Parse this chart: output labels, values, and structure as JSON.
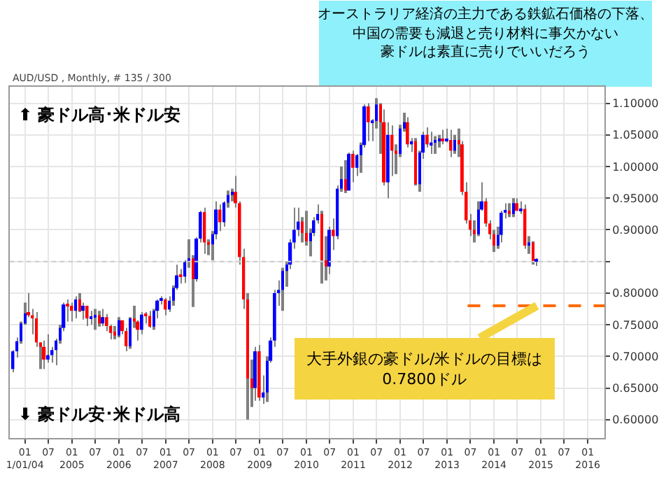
{
  "chart_data": {
    "type": "candlestick",
    "x": [
      "2003-10",
      "2003-11",
      "2003-12",
      "2004-01",
      "2004-02",
      "2004-03",
      "2004-04",
      "2004-05",
      "2004-06",
      "2004-07",
      "2004-08",
      "2004-09",
      "2004-10",
      "2004-11",
      "2004-12",
      "2005-01",
      "2005-02",
      "2005-03",
      "2005-04",
      "2005-05",
      "2005-06",
      "2005-07",
      "2005-08",
      "2005-09",
      "2005-10",
      "2005-11",
      "2005-12",
      "2006-01",
      "2006-02",
      "2006-03",
      "2006-04",
      "2006-05",
      "2006-06",
      "2006-07",
      "2006-08",
      "2006-09",
      "2006-10",
      "2006-11",
      "2006-12",
      "2007-01",
      "2007-02",
      "2007-03",
      "2007-04",
      "2007-05",
      "2007-06",
      "2007-07",
      "2007-08",
      "2007-09",
      "2007-10",
      "2007-11",
      "2007-12",
      "2008-01",
      "2008-02",
      "2008-03",
      "2008-04",
      "2008-05",
      "2008-06",
      "2008-07",
      "2008-08",
      "2008-09",
      "2008-10",
      "2008-11",
      "2008-12",
      "2009-01",
      "2009-02",
      "2009-03",
      "2009-04",
      "2009-05",
      "2009-06",
      "2009-07",
      "2009-08",
      "2009-09",
      "2009-10",
      "2009-11",
      "2009-12",
      "2010-01",
      "2010-02",
      "2010-03",
      "2010-04",
      "2010-05",
      "2010-06",
      "2010-07",
      "2010-08",
      "2010-09",
      "2010-10",
      "2010-11",
      "2010-12",
      "2011-01",
      "2011-02",
      "2011-03",
      "2011-04",
      "2011-05",
      "2011-06",
      "2011-07",
      "2011-08",
      "2011-09",
      "2011-10",
      "2011-11",
      "2011-12",
      "2012-01",
      "2012-02",
      "2012-03",
      "2012-04",
      "2012-05",
      "2012-06",
      "2012-07",
      "2012-08",
      "2012-09",
      "2012-10",
      "2012-11",
      "2012-12",
      "2013-01",
      "2013-02",
      "2013-03",
      "2013-04",
      "2013-05",
      "2013-06",
      "2013-07",
      "2013-08",
      "2013-09",
      "2013-10",
      "2013-11",
      "2013-12",
      "2014-01",
      "2014-02",
      "2014-03",
      "2014-04",
      "2014-05",
      "2014-06",
      "2014-07",
      "2014-08",
      "2014-09",
      "2014-10",
      "2014-11",
      "2014-12"
    ],
    "ohlc": [
      [
        0.68,
        0.71,
        0.675,
        0.708
      ],
      [
        0.708,
        0.73,
        0.698,
        0.724
      ],
      [
        0.724,
        0.755,
        0.72,
        0.752
      ],
      [
        0.752,
        0.785,
        0.75,
        0.768
      ],
      [
        0.768,
        0.8,
        0.762,
        0.765
      ],
      [
        0.765,
        0.775,
        0.735,
        0.76
      ],
      [
        0.76,
        0.77,
        0.715,
        0.722
      ],
      [
        0.722,
        0.722,
        0.68,
        0.715
      ],
      [
        0.715,
        0.725,
        0.68,
        0.695
      ],
      [
        0.695,
        0.735,
        0.69,
        0.702
      ],
      [
        0.702,
        0.715,
        0.69,
        0.71
      ],
      [
        0.71,
        0.728,
        0.686,
        0.725
      ],
      [
        0.725,
        0.75,
        0.72,
        0.745
      ],
      [
        0.745,
        0.785,
        0.74,
        0.782
      ],
      [
        0.782,
        0.79,
        0.755,
        0.78
      ],
      [
        0.78,
        0.785,
        0.755,
        0.772
      ],
      [
        0.772,
        0.795,
        0.76,
        0.79
      ],
      [
        0.79,
        0.8,
        0.77,
        0.772
      ],
      [
        0.772,
        0.785,
        0.758,
        0.78
      ],
      [
        0.78,
        0.78,
        0.748,
        0.76
      ],
      [
        0.76,
        0.772,
        0.75,
        0.762
      ],
      [
        0.762,
        0.775,
        0.742,
        0.765
      ],
      [
        0.765,
        0.772,
        0.747,
        0.752
      ],
      [
        0.752,
        0.775,
        0.748,
        0.762
      ],
      [
        0.762,
        0.767,
        0.74,
        0.748
      ],
      [
        0.748,
        0.75,
        0.727,
        0.737
      ],
      [
        0.737,
        0.748,
        0.727,
        0.733
      ],
      [
        0.733,
        0.762,
        0.73,
        0.757
      ],
      [
        0.757,
        0.757,
        0.735,
        0.74
      ],
      [
        0.74,
        0.745,
        0.708,
        0.716
      ],
      [
        0.716,
        0.762,
        0.712,
        0.76
      ],
      [
        0.76,
        0.78,
        0.745,
        0.755
      ],
      [
        0.755,
        0.757,
        0.725,
        0.742
      ],
      [
        0.742,
        0.77,
        0.735,
        0.766
      ],
      [
        0.766,
        0.77,
        0.752,
        0.764
      ],
      [
        0.764,
        0.772,
        0.745,
        0.747
      ],
      [
        0.747,
        0.775,
        0.742,
        0.772
      ],
      [
        0.772,
        0.79,
        0.76,
        0.788
      ],
      [
        0.788,
        0.795,
        0.782,
        0.79
      ],
      [
        0.79,
        0.792,
        0.765,
        0.774
      ],
      [
        0.774,
        0.795,
        0.77,
        0.788
      ],
      [
        0.788,
        0.812,
        0.78,
        0.808
      ],
      [
        0.808,
        0.845,
        0.805,
        0.828
      ],
      [
        0.828,
        0.838,
        0.815,
        0.826
      ],
      [
        0.826,
        0.852,
        0.816,
        0.849
      ],
      [
        0.849,
        0.885,
        0.84,
        0.855
      ],
      [
        0.855,
        0.86,
        0.778,
        0.822
      ],
      [
        0.822,
        0.888,
        0.818,
        0.886
      ],
      [
        0.886,
        0.93,
        0.88,
        0.928
      ],
      [
        0.928,
        0.935,
        0.862,
        0.88
      ],
      [
        0.88,
        0.885,
        0.86,
        0.877
      ],
      [
        0.877,
        0.898,
        0.852,
        0.893
      ],
      [
        0.893,
        0.945,
        0.885,
        0.932
      ],
      [
        0.932,
        0.94,
        0.898,
        0.912
      ],
      [
        0.912,
        0.945,
        0.905,
        0.943
      ],
      [
        0.943,
        0.962,
        0.935,
        0.955
      ],
      [
        0.955,
        0.965,
        0.945,
        0.96
      ],
      [
        0.96,
        0.985,
        0.935,
        0.942
      ],
      [
        0.942,
        0.945,
        0.845,
        0.857
      ],
      [
        0.857,
        0.87,
        0.775,
        0.79
      ],
      [
        0.79,
        0.8,
        0.6,
        0.665
      ],
      [
        0.665,
        0.695,
        0.62,
        0.65
      ],
      [
        0.65,
        0.715,
        0.63,
        0.708
      ],
      [
        0.708,
        0.718,
        0.63,
        0.635
      ],
      [
        0.635,
        0.67,
        0.625,
        0.643
      ],
      [
        0.643,
        0.7,
        0.628,
        0.693
      ],
      [
        0.693,
        0.73,
        0.69,
        0.725
      ],
      [
        0.725,
        0.805,
        0.715,
        0.8
      ],
      [
        0.8,
        0.82,
        0.78,
        0.805
      ],
      [
        0.805,
        0.84,
        0.772,
        0.835
      ],
      [
        0.835,
        0.85,
        0.81,
        0.845
      ],
      [
        0.845,
        0.885,
        0.838,
        0.88
      ],
      [
        0.88,
        0.935,
        0.87,
        0.9
      ],
      [
        0.9,
        0.935,
        0.89,
        0.913
      ],
      [
        0.913,
        0.92,
        0.88,
        0.895
      ],
      [
        0.895,
        0.93,
        0.875,
        0.882
      ],
      [
        0.882,
        0.902,
        0.858,
        0.895
      ],
      [
        0.895,
        0.92,
        0.89,
        0.915
      ],
      [
        0.915,
        0.94,
        0.91,
        0.925
      ],
      [
        0.925,
        0.93,
        0.815,
        0.852
      ],
      [
        0.852,
        0.89,
        0.82,
        0.842
      ],
      [
        0.842,
        0.905,
        0.83,
        0.9
      ],
      [
        0.9,
        0.918,
        0.868,
        0.89
      ],
      [
        0.89,
        0.97,
        0.885,
        0.965
      ],
      [
        0.965,
        1.0,
        0.96,
        0.98
      ],
      [
        0.98,
        1.01,
        0.958,
        0.962
      ],
      [
        0.962,
        1.022,
        0.962,
        1.02
      ],
      [
        1.02,
        1.025,
        0.975,
        0.998
      ],
      [
        0.998,
        1.02,
        0.985,
        1.018
      ],
      [
        1.018,
        1.038,
        0.99,
        1.034
      ],
      [
        1.034,
        1.098,
        1.03,
        1.095
      ],
      [
        1.095,
        1.1,
        1.04,
        1.07
      ],
      [
        1.07,
        1.075,
        1.04,
        1.072
      ],
      [
        1.072,
        1.108,
        1.06,
        1.098
      ],
      [
        1.098,
        1.1,
        1.02,
        1.07
      ],
      [
        1.07,
        1.09,
        0.97,
        0.975
      ],
      [
        0.975,
        1.07,
        0.95,
        1.05
      ],
      [
        1.05,
        1.065,
        0.985,
        1.025
      ],
      [
        1.025,
        1.035,
        0.988,
        1.02
      ],
      [
        1.02,
        1.066,
        1.015,
        1.06
      ],
      [
        1.06,
        1.085,
        1.055,
        1.07
      ],
      [
        1.07,
        1.078,
        1.03,
        1.035
      ],
      [
        1.035,
        1.045,
        1.023,
        1.04
      ],
      [
        1.04,
        1.045,
        0.97,
        0.972
      ],
      [
        0.972,
        1.025,
        0.96,
        1.022
      ],
      [
        1.022,
        1.055,
        1.012,
        1.05
      ],
      [
        1.05,
        1.062,
        1.03,
        1.035
      ],
      [
        1.035,
        1.055,
        1.02,
        1.038
      ],
      [
        1.038,
        1.048,
        1.02,
        1.04
      ],
      [
        1.04,
        1.05,
        1.03,
        1.043
      ],
      [
        1.043,
        1.058,
        1.035,
        1.04
      ],
      [
        1.04,
        1.06,
        1.038,
        1.042
      ],
      [
        1.042,
        1.058,
        1.015,
        1.025
      ],
      [
        1.025,
        1.05,
        1.02,
        1.042
      ],
      [
        1.042,
        1.06,
        1.015,
        1.035
      ],
      [
        1.035,
        1.04,
        0.955,
        0.96
      ],
      [
        0.96,
        0.975,
        0.91,
        0.915
      ],
      [
        0.915,
        0.925,
        0.89,
        0.9
      ],
      [
        0.9,
        0.915,
        0.88,
        0.893
      ],
      [
        0.893,
        0.945,
        0.89,
        0.932
      ],
      [
        0.932,
        0.975,
        0.93,
        0.945
      ],
      [
        0.945,
        0.95,
        0.905,
        0.91
      ],
      [
        0.91,
        0.915,
        0.885,
        0.893
      ],
      [
        0.893,
        0.9,
        0.865,
        0.875
      ],
      [
        0.875,
        0.905,
        0.87,
        0.892
      ],
      [
        0.892,
        0.93,
        0.88,
        0.927
      ],
      [
        0.927,
        0.942,
        0.918,
        0.93
      ],
      [
        0.93,
        0.942,
        0.92,
        0.925
      ],
      [
        0.925,
        0.95,
        0.92,
        0.942
      ],
      [
        0.942,
        0.95,
        0.93,
        0.93
      ],
      [
        0.93,
        0.945,
        0.925,
        0.933
      ],
      [
        0.933,
        0.94,
        0.87,
        0.875
      ],
      [
        0.875,
        0.89,
        0.862,
        0.88
      ],
      [
        0.88,
        0.882,
        0.845,
        0.85
      ],
      [
        0.85,
        0.855,
        0.843,
        0.853
      ]
    ],
    "colors": [
      "#0000ff",
      "#0000ff",
      "#0000ff",
      "#0000ff",
      "#ff0000",
      "#ff0000",
      "#ff0000",
      "#ff0000",
      "#ff0000",
      "#0000ff",
      "#0000ff",
      "#0000ff",
      "#0000ff",
      "#0000ff",
      "#ff0000",
      "#ff0000",
      "#0000ff",
      "#ff0000",
      "#0000ff",
      "#ff0000",
      "#0000ff",
      "#0000ff",
      "#ff0000",
      "#0000ff",
      "#ff0000",
      "#ff0000",
      "#ff0000",
      "#0000ff",
      "#ff0000",
      "#ff0000",
      "#0000ff",
      "#ff0000",
      "#ff0000",
      "#0000ff",
      "#ff0000",
      "#ff0000",
      "#0000ff",
      "#0000ff",
      "#0000ff",
      "#ff0000",
      "#0000ff",
      "#0000ff",
      "#0000ff",
      "#ff0000",
      "#0000ff",
      "#0000ff",
      "#ff0000",
      "#0000ff",
      "#0000ff",
      "#ff0000",
      "#ff0000",
      "#0000ff",
      "#0000ff",
      "#ff0000",
      "#0000ff",
      "#0000ff",
      "#0000ff",
      "#ff0000",
      "#ff0000",
      "#ff0000",
      "#ff0000",
      "#ff0000",
      "#0000ff",
      "#ff0000",
      "#0000ff",
      "#0000ff",
      "#0000ff",
      "#0000ff",
      "#0000ff",
      "#0000ff",
      "#0000ff",
      "#0000ff",
      "#0000ff",
      "#0000ff",
      "#ff0000",
      "#ff0000",
      "#0000ff",
      "#0000ff",
      "#0000ff",
      "#ff0000",
      "#ff0000",
      "#0000ff",
      "#ff0000",
      "#0000ff",
      "#0000ff",
      "#ff0000",
      "#0000ff",
      "#ff0000",
      "#0000ff",
      "#0000ff",
      "#0000ff",
      "#ff0000",
      "#0000ff",
      "#0000ff",
      "#ff0000",
      "#ff0000",
      "#0000ff",
      "#ff0000",
      "#ff0000",
      "#0000ff",
      "#0000ff",
      "#ff0000",
      "#0000ff",
      "#ff0000",
      "#0000ff",
      "#0000ff",
      "#ff0000",
      "#0000ff",
      "#0000ff",
      "#0000ff",
      "#ff0000",
      "#0000ff",
      "#ff0000",
      "#0000ff",
      "#ff0000",
      "#ff0000",
      "#ff0000",
      "#ff0000",
      "#ff0000",
      "#0000ff",
      "#0000ff",
      "#ff0000",
      "#ff0000",
      "#ff0000",
      "#0000ff",
      "#0000ff",
      "#0000ff",
      "#ff0000",
      "#0000ff",
      "#ff0000",
      "#0000ff",
      "#ff0000",
      "#0000ff",
      "#ff0000",
      "#0000ff"
    ],
    "xlim": [
      "2003-09-05",
      "2016-05-10"
    ],
    "xticks": [
      {
        "value": "2004-01",
        "label": "01\n1/01/04"
      },
      {
        "value": "2004-07",
        "label": "07"
      },
      {
        "value": "2005-01",
        "label": "01\n2005"
      },
      {
        "value": "2005-07",
        "label": "07"
      },
      {
        "value": "2006-01",
        "label": "01\n2006"
      },
      {
        "value": "2006-07",
        "label": "07"
      },
      {
        "value": "2007-01",
        "label": "01\n2007"
      },
      {
        "value": "2007-07",
        "label": "07"
      },
      {
        "value": "2008-01",
        "label": "01\n2008"
      },
      {
        "value": "2008-07",
        "label": "07"
      },
      {
        "value": "2009-01",
        "label": "01\n2009"
      },
      {
        "value": "2009-07",
        "label": "07"
      },
      {
        "value": "2010-01",
        "label": "01\n2010"
      },
      {
        "value": "2010-07",
        "label": "07"
      },
      {
        "value": "2011-01",
        "label": "01\n2011"
      },
      {
        "value": "2011-07",
        "label": "07"
      },
      {
        "value": "2012-01",
        "label": "01\n2012"
      },
      {
        "value": "2012-07",
        "label": "07"
      },
      {
        "value": "2013-01",
        "label": "01\n2013"
      },
      {
        "value": "2013-07",
        "label": "07"
      },
      {
        "value": "2014-01",
        "label": "01\n2014"
      },
      {
        "value": "2014-07",
        "label": "07"
      },
      {
        "value": "2015-01",
        "label": "01\n2015"
      },
      {
        "value": "2015-07",
        "label": "07"
      },
      {
        "value": "2016-01",
        "label": "01\n2016"
      }
    ],
    "ylim": [
      0.571,
      1.126
    ],
    "yticks": [
      {
        "value": 0.6,
        "label": "0.60000"
      },
      {
        "value": 0.65,
        "label": "0.65000"
      },
      {
        "value": 0.7,
        "label": "0.70000"
      },
      {
        "value": 0.75,
        "label": "0.75000"
      },
      {
        "value": 0.8,
        "label": "0.80000"
      },
      {
        "value": 0.85,
        "label": null
      },
      {
        "value": 0.9,
        "label": "0.90000"
      },
      {
        "value": 0.95,
        "label": "0.95000"
      },
      {
        "value": 1.0,
        "label": "1.00000"
      },
      {
        "value": 1.05,
        "label": "1.05000"
      },
      {
        "value": 1.1,
        "label": "1.10000"
      }
    ],
    "grid": true,
    "ref_lines": [
      {
        "axis": "y",
        "value": 0.78,
        "label": null,
        "color": "#ff6a00",
        "line_style": "dashed"
      },
      {
        "axis": "y",
        "value": 0.85,
        "label": null,
        "color": "#cccccc",
        "line_style": "dotted"
      }
    ],
    "annotations": [
      "AUD/USD , Monthly, # 135 / 300",
      "オーストラリア経済の主力である鉄鉱石価格の下落、",
      "中国の需要も減退と売り材料に事欠かない",
      "豪ドルは素直に売りでいいだろう",
      "⬆ 豪ドル高･米ドル安",
      "⬇ 豪ドル安･米ドル高",
      {
        "text": "大手外銀の豪ドル/米ドルの目標は\n0.7800ドル",
        "x": "2014-12",
        "y": 0.78
      }
    ]
  }
}
